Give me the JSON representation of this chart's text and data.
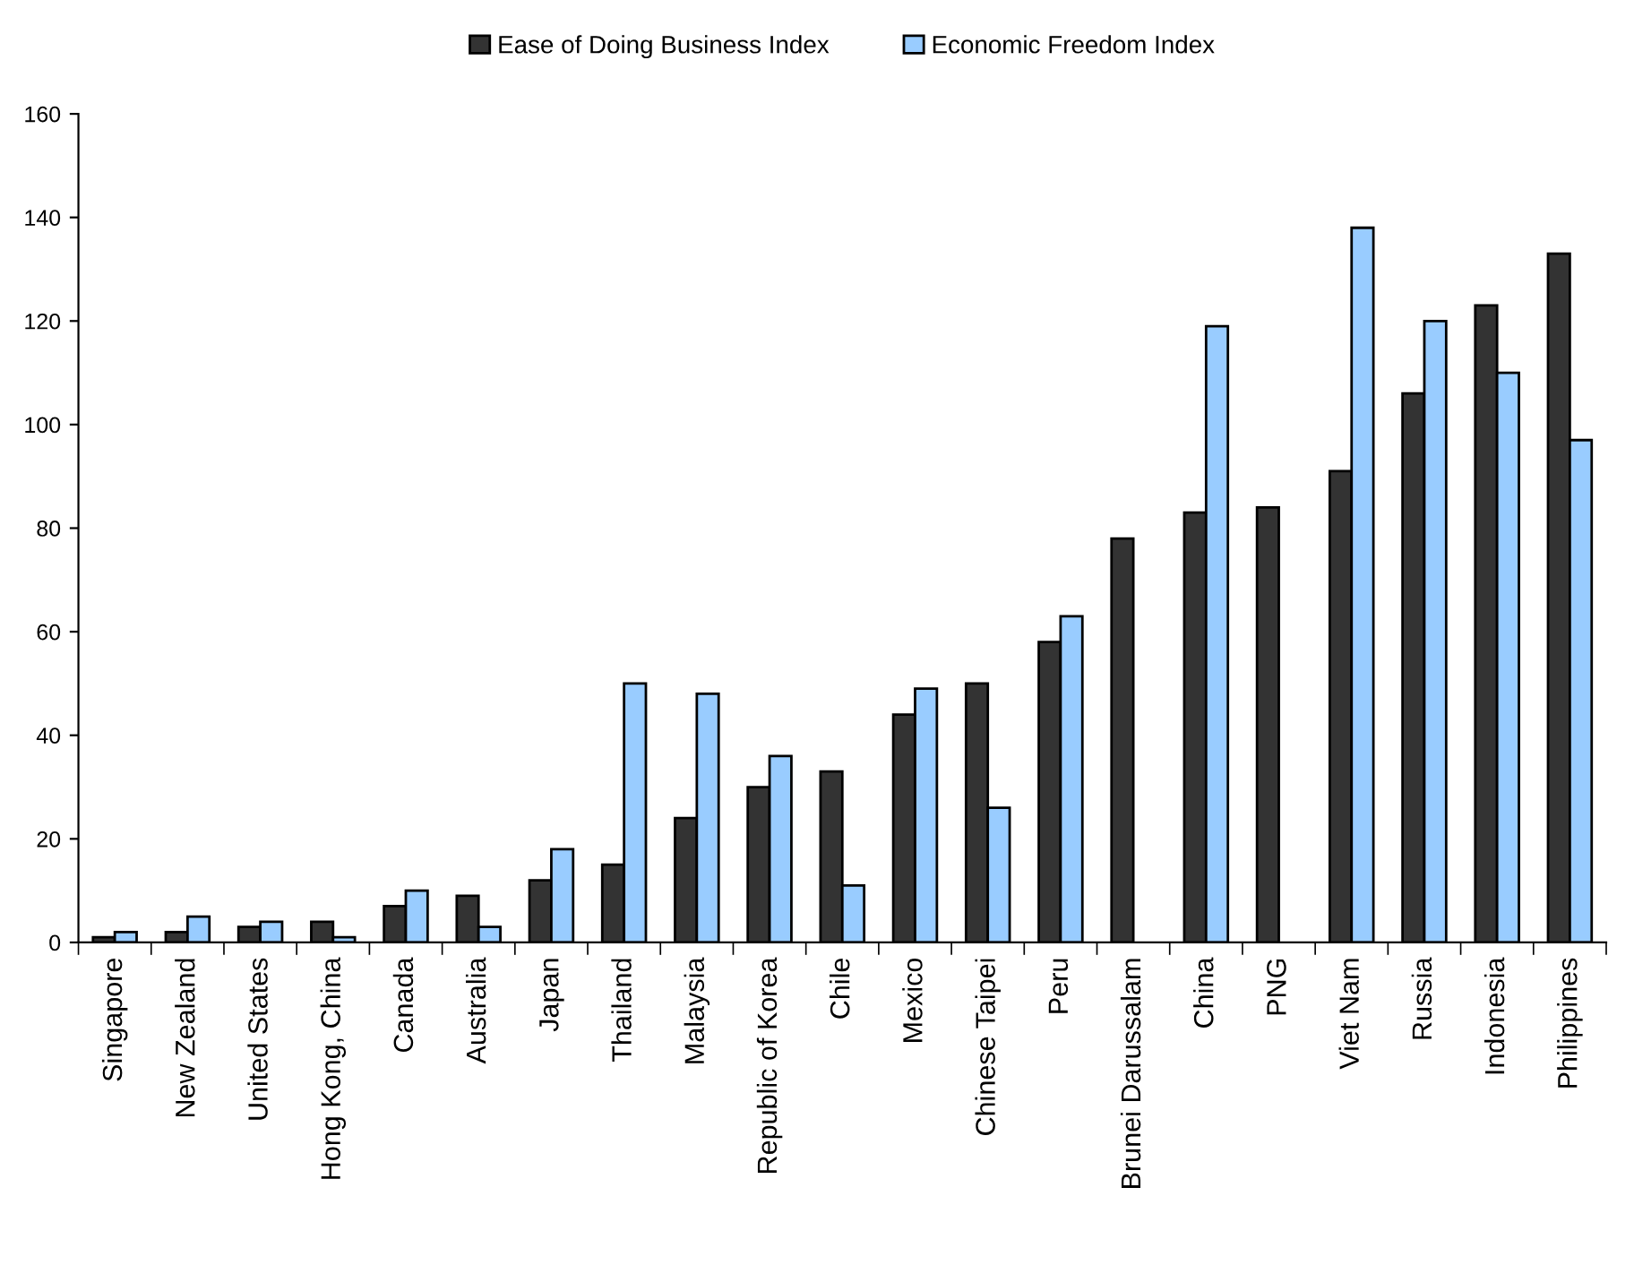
{
  "chart_data": {
    "type": "bar",
    "categories": [
      "Singapore",
      "New Zealand",
      "United States",
      "Hong Kong, China",
      "Canada",
      "Australia",
      "Japan",
      "Thailand",
      "Malaysia",
      "Republic of Korea",
      "Chile",
      "Mexico",
      "Chinese Taipei",
      "Peru",
      "Brunei Darussalam",
      "China",
      "PNG",
      "Viet Nam",
      "Russia",
      "Indonesia",
      "Philippines"
    ],
    "series": [
      {
        "name": "Ease of Doing Business Index",
        "color": "#333333",
        "values": [
          1,
          2,
          3,
          4,
          7,
          9,
          12,
          15,
          24,
          30,
          33,
          44,
          50,
          58,
          78,
          83,
          84,
          91,
          106,
          123,
          133
        ]
      },
      {
        "name": "Economic Freedom Index",
        "color": "#99ccff",
        "values": [
          2,
          5,
          4,
          1,
          10,
          3,
          18,
          50,
          48,
          36,
          11,
          49,
          26,
          63,
          null,
          119,
          null,
          138,
          120,
          110,
          97
        ]
      }
    ],
    "ylim": [
      0,
      160
    ],
    "yticks": [
      0,
      20,
      40,
      60,
      80,
      100,
      120,
      140,
      160
    ],
    "grid": false,
    "legend": "top"
  }
}
